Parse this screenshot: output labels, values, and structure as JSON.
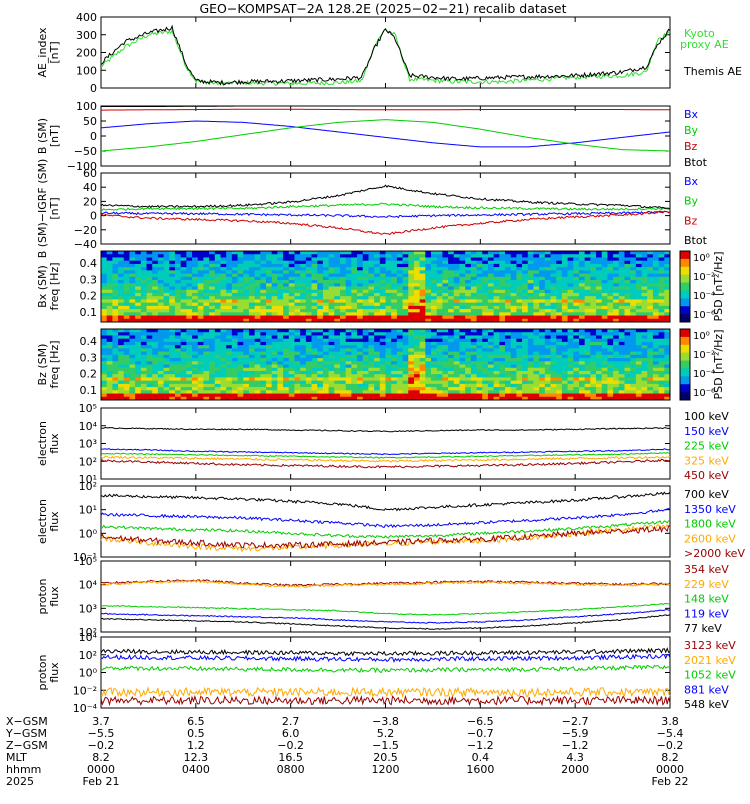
{
  "title": "GEO−KOMPSAT−2A 128.2E (2025−02−21) recalib dataset",
  "colors": {
    "black": "#000000",
    "blue": "#0000ff",
    "green": "#00cc00",
    "red": "#cc0000",
    "orange": "#ffaa00",
    "darkred": "#990000",
    "kyoto": "#33dd33"
  },
  "chart_data": [
    {
      "type": "line",
      "id": "ae",
      "ylabel": "AE_index\n[nT]",
      "ylim": [
        0,
        400
      ],
      "yticks": [
        "400",
        "300",
        "200",
        "100",
        "0"
      ],
      "x": [
        0,
        1,
        2,
        3,
        3.6,
        4,
        5,
        6,
        8,
        10,
        11,
        11.6,
        12,
        12.4,
        13,
        15,
        17,
        20,
        22,
        23,
        23.5,
        24
      ],
      "series": [
        {
          "name": "Kyoto\nproxy AE",
          "color": "kyoto",
          "values": [
            120,
            230,
            300,
            320,
            120,
            40,
            25,
            30,
            25,
            30,
            40,
            260,
            330,
            300,
            50,
            35,
            35,
            60,
            70,
            90,
            280,
            310
          ]
        },
        {
          "name": "Themis AE",
          "color": "black",
          "values": [
            140,
            260,
            310,
            340,
            130,
            40,
            30,
            35,
            40,
            50,
            60,
            240,
            330,
            280,
            70,
            50,
            60,
            70,
            90,
            120,
            250,
            330
          ]
        }
      ]
    },
    {
      "type": "line",
      "id": "bsm",
      "ylabel": "B (SM)\n[nT]",
      "ylim": [
        -110,
        110
      ],
      "yticks": [
        "100",
        "50",
        "0",
        "−50",
        "−100"
      ],
      "x": [
        0,
        2,
        4,
        6,
        8,
        10,
        12,
        14,
        16,
        18,
        20,
        22,
        24
      ],
      "series": [
        {
          "name": "Bx",
          "color": "blue",
          "values": [
            30,
            45,
            55,
            50,
            35,
            15,
            -5,
            -25,
            -40,
            -40,
            -25,
            -5,
            15
          ]
        },
        {
          "name": "By",
          "color": "green",
          "values": [
            -55,
            -40,
            -20,
            5,
            30,
            50,
            60,
            50,
            25,
            -5,
            -30,
            -50,
            -55
          ]
        },
        {
          "name": "Bz",
          "color": "red",
          "values": [
            95,
            96,
            97,
            98,
            98,
            97,
            96,
            96,
            97,
            97,
            97,
            97,
            96
          ]
        },
        {
          "name": "Btot",
          "color": "black",
          "values": [
            108,
            108,
            109,
            110,
            112,
            113,
            114,
            113,
            112,
            111,
            110,
            110,
            110
          ]
        }
      ]
    },
    {
      "type": "line",
      "id": "bdiff",
      "ylabel": "B (SM)−IGRF (SM)\n[nT]",
      "ylim": [
        -50,
        60
      ],
      "yticks": [
        "60",
        "40",
        "20",
        "0",
        "−20",
        "−40"
      ],
      "x": [
        0,
        2,
        4,
        6,
        8,
        10,
        12,
        14,
        16,
        18,
        20,
        22,
        24
      ],
      "series": [
        {
          "name": "Bx",
          "color": "blue",
          "values": [
            -2,
            -3,
            -3,
            -4,
            -5,
            -6,
            -8,
            -6,
            -5,
            -4,
            -3,
            -2,
            0
          ]
        },
        {
          "name": "By",
          "color": "green",
          "values": [
            3,
            5,
            5,
            5,
            8,
            10,
            12,
            8,
            6,
            5,
            4,
            4,
            5
          ]
        },
        {
          "name": "Bz",
          "color": "red",
          "values": [
            -5,
            -10,
            -12,
            -14,
            -18,
            -25,
            -35,
            -25,
            -18,
            -12,
            -8,
            -5,
            0
          ]
        },
        {
          "name": "Btot",
          "color": "black",
          "values": [
            10,
            8,
            8,
            10,
            15,
            25,
            40,
            28,
            20,
            15,
            12,
            10,
            5
          ]
        }
      ]
    },
    {
      "type": "heatmap",
      "id": "bx_psd",
      "ylabel": "Bx (SM)\nfreq [Hz]",
      "ylim": [
        0.05,
        0.5
      ],
      "yticks": [
        "0.4",
        "0.3",
        "0.2",
        "0.1"
      ],
      "colorbar": {
        "label": "PSD [nT²/Hz]",
        "ticks": [
          "10⁰",
          "10⁻²",
          "10⁻⁴",
          "10⁻⁶"
        ]
      }
    },
    {
      "type": "heatmap",
      "id": "bz_psd",
      "ylabel": "Bz (SM)\nfreq [Hz]",
      "ylim": [
        0.05,
        0.5
      ],
      "yticks": [
        "0.4",
        "0.3",
        "0.2",
        "0.1"
      ],
      "colorbar": {
        "label": "PSD [nT²/Hz]",
        "ticks": [
          "10⁰",
          "10⁻²",
          "10⁻⁴",
          "10⁻⁶"
        ]
      }
    },
    {
      "type": "line",
      "id": "eflux_low",
      "log": true,
      "ylabel": "electron\nflux",
      "ylim": [
        1,
        6
      ],
      "yticks": [
        "10⁵",
        "10⁴",
        "10³",
        "10²",
        "10¹"
      ],
      "x": [
        0,
        2,
        4,
        6,
        8,
        10,
        12,
        14,
        16,
        18,
        20,
        22,
        24
      ],
      "series": [
        {
          "name": "100 keV",
          "color": "black",
          "values": [
            4.6,
            4.55,
            4.5,
            4.5,
            4.45,
            4.4,
            4.35,
            4.4,
            4.45,
            4.45,
            4.5,
            4.55,
            4.6
          ]
        },
        {
          "name": "150 keV",
          "color": "blue",
          "values": [
            3.1,
            3.05,
            2.95,
            2.9,
            2.85,
            2.8,
            2.75,
            2.8,
            2.85,
            2.9,
            2.95,
            3.0,
            3.1
          ]
        },
        {
          "name": "225 keV",
          "color": "green",
          "values": [
            2.8,
            2.75,
            2.7,
            2.65,
            2.6,
            2.55,
            2.5,
            2.55,
            2.6,
            2.65,
            2.7,
            2.75,
            2.85
          ]
        },
        {
          "name": "325 keV",
          "color": "orange",
          "values": [
            2.55,
            2.5,
            2.45,
            2.4,
            2.35,
            2.3,
            2.25,
            2.3,
            2.35,
            2.4,
            2.45,
            2.5,
            2.55
          ]
        },
        {
          "name": "450 keV",
          "color": "darkred",
          "values": [
            2.3,
            2.2,
            2.1,
            2.0,
            1.95,
            1.9,
            1.85,
            1.9,
            1.95,
            2.0,
            2.1,
            2.2,
            2.35
          ]
        }
      ]
    },
    {
      "type": "line",
      "id": "eflux_high",
      "log": true,
      "ylabel": "electron\nflux",
      "ylim": [
        -1,
        2
      ],
      "yticks": [
        "10²",
        "10¹",
        "10⁰",
        "10⁻¹"
      ],
      "x": [
        0,
        2,
        4,
        6,
        8,
        10,
        12,
        14,
        16,
        18,
        20,
        22,
        24
      ],
      "series": [
        {
          "name": "700 keV",
          "color": "black",
          "values": [
            1.6,
            1.55,
            1.5,
            1.45,
            1.35,
            1.25,
            1.0,
            1.1,
            1.2,
            1.3,
            1.4,
            1.55,
            1.7
          ]
        },
        {
          "name": "1350 keV",
          "color": "blue",
          "values": [
            0.8,
            0.75,
            0.7,
            0.65,
            0.55,
            0.45,
            0.3,
            0.35,
            0.45,
            0.55,
            0.65,
            0.8,
            1.0
          ]
        },
        {
          "name": "1800 keV",
          "color": "green",
          "values": [
            0.3,
            0.2,
            0.15,
            0.1,
            0.0,
            -0.1,
            -0.15,
            -0.1,
            0.0,
            0.1,
            0.2,
            0.35,
            0.5
          ]
        },
        {
          "name": "2600 keV",
          "color": "orange",
          "values": [
            -0.2,
            -0.4,
            -0.55,
            -0.65,
            -0.6,
            -0.5,
            -0.45,
            -0.35,
            -0.3,
            -0.2,
            0.0,
            0.15,
            0.3
          ]
        },
        {
          "name": ">2000 keV",
          "color": "darkred",
          "values": [
            -0.15,
            -0.3,
            -0.4,
            -0.5,
            -0.5,
            -0.45,
            -0.4,
            -0.3,
            -0.25,
            -0.15,
            0.0,
            0.1,
            0.2
          ]
        }
      ]
    },
    {
      "type": "line",
      "id": "pflux_low",
      "log": true,
      "ylabel": "proton\nflux",
      "ylim": [
        1.7,
        5.2
      ],
      "yticks": [
        "10⁵",
        "10⁴",
        "10³",
        "10²"
      ],
      "x": [
        0,
        2,
        4,
        6,
        8,
        10,
        12,
        14,
        16,
        18,
        20,
        22,
        24
      ],
      "series": [
        {
          "name": "354 keV",
          "color": "darkred",
          "values": [
            4.1,
            4.2,
            4.25,
            4.1,
            4.0,
            4.05,
            4.1,
            4.15,
            4.2,
            4.15,
            4.1,
            4.05,
            4.1
          ]
        },
        {
          "name": "229 keV",
          "color": "orange",
          "values": [
            4.05,
            4.15,
            4.2,
            4.05,
            3.95,
            4.0,
            4.05,
            4.1,
            4.15,
            4.1,
            4.05,
            4.0,
            4.05
          ]
        },
        {
          "name": "148 keV",
          "color": "green",
          "values": [
            3.0,
            2.95,
            2.9,
            2.85,
            2.8,
            2.75,
            2.6,
            2.55,
            2.6,
            2.7,
            2.8,
            2.95,
            3.1
          ]
        },
        {
          "name": "119 keV",
          "color": "blue",
          "values": [
            2.6,
            2.55,
            2.5,
            2.45,
            2.4,
            2.3,
            2.2,
            2.15,
            2.2,
            2.3,
            2.45,
            2.6,
            2.8
          ]
        },
        {
          "name": "77 keV",
          "color": "black",
          "values": [
            2.35,
            2.3,
            2.25,
            2.2,
            2.1,
            2.0,
            1.9,
            1.85,
            1.9,
            2.0,
            2.15,
            2.3,
            2.55
          ]
        }
      ]
    },
    {
      "type": "line",
      "id": "pflux_high",
      "log": true,
      "ylabel": "proton\nflux",
      "ylim": [
        -4.5,
        4
      ],
      "yticks": [
        "10⁴",
        "10²",
        "10⁰",
        "10⁻²",
        "10⁻⁴"
      ],
      "x": [
        0,
        2,
        4,
        6,
        8,
        10,
        12,
        14,
        16,
        18,
        20,
        22,
        24
      ],
      "series": [
        {
          "name": "3123 keV",
          "color": "darkred",
          "values": [
            -3.6,
            -3.6,
            -3.6,
            -3.6,
            -3.6,
            -3.6,
            -3.6,
            -3.6,
            -3.6,
            -3.6,
            -3.6,
            -3.6,
            -3.6
          ]
        },
        {
          "name": "2021 keV",
          "color": "orange",
          "values": [
            -2.6,
            -2.6,
            -2.6,
            -2.6,
            -2.6,
            -2.6,
            -2.6,
            -2.6,
            -2.6,
            -2.6,
            -2.6,
            -2.6,
            -2.6
          ]
        },
        {
          "name": "1052 keV",
          "color": "green",
          "values": [
            0.3,
            0.25,
            0.2,
            0.15,
            0.1,
            0.05,
            0.0,
            0.05,
            0.1,
            0.15,
            0.2,
            0.3,
            0.4
          ]
        },
        {
          "name": "881 keV",
          "color": "blue",
          "values": [
            1.6,
            1.55,
            1.5,
            1.45,
            1.4,
            1.35,
            1.3,
            1.35,
            1.4,
            1.45,
            1.5,
            1.6,
            1.7
          ]
        },
        {
          "name": "548 keV",
          "color": "black",
          "values": [
            2.3,
            2.25,
            2.2,
            2.15,
            2.1,
            2.05,
            2.0,
            2.05,
            2.1,
            2.15,
            2.2,
            2.3,
            2.4
          ]
        }
      ]
    }
  ],
  "footer": {
    "rows": [
      {
        "label": "X−GSM",
        "values": [
          "3.7",
          "6.5",
          "2.7",
          "−3.8",
          "−6.5",
          "−2.7",
          "3.8"
        ]
      },
      {
        "label": "Y−GSM",
        "values": [
          "−5.5",
          "0.5",
          "6.0",
          "5.2",
          "−0.7",
          "−5.9",
          "−5.4"
        ]
      },
      {
        "label": "Z−GSM",
        "values": [
          "−0.2",
          "1.2",
          "−0.2",
          "−1.5",
          "−1.2",
          "−1.2",
          "−0.2"
        ]
      },
      {
        "label": "MLT",
        "values": [
          "8.2",
          "12.3",
          "16.5",
          "20.5",
          "0.4",
          "4.3",
          "8.2"
        ]
      },
      {
        "label": "hhmm",
        "values": [
          "0000",
          "0400",
          "0800",
          "1200",
          "1600",
          "2000",
          "0000"
        ]
      },
      {
        "label": "2025",
        "values": [
          "Feb 21",
          "",
          "",
          "",
          "",
          "",
          "Feb 22"
        ]
      }
    ]
  }
}
